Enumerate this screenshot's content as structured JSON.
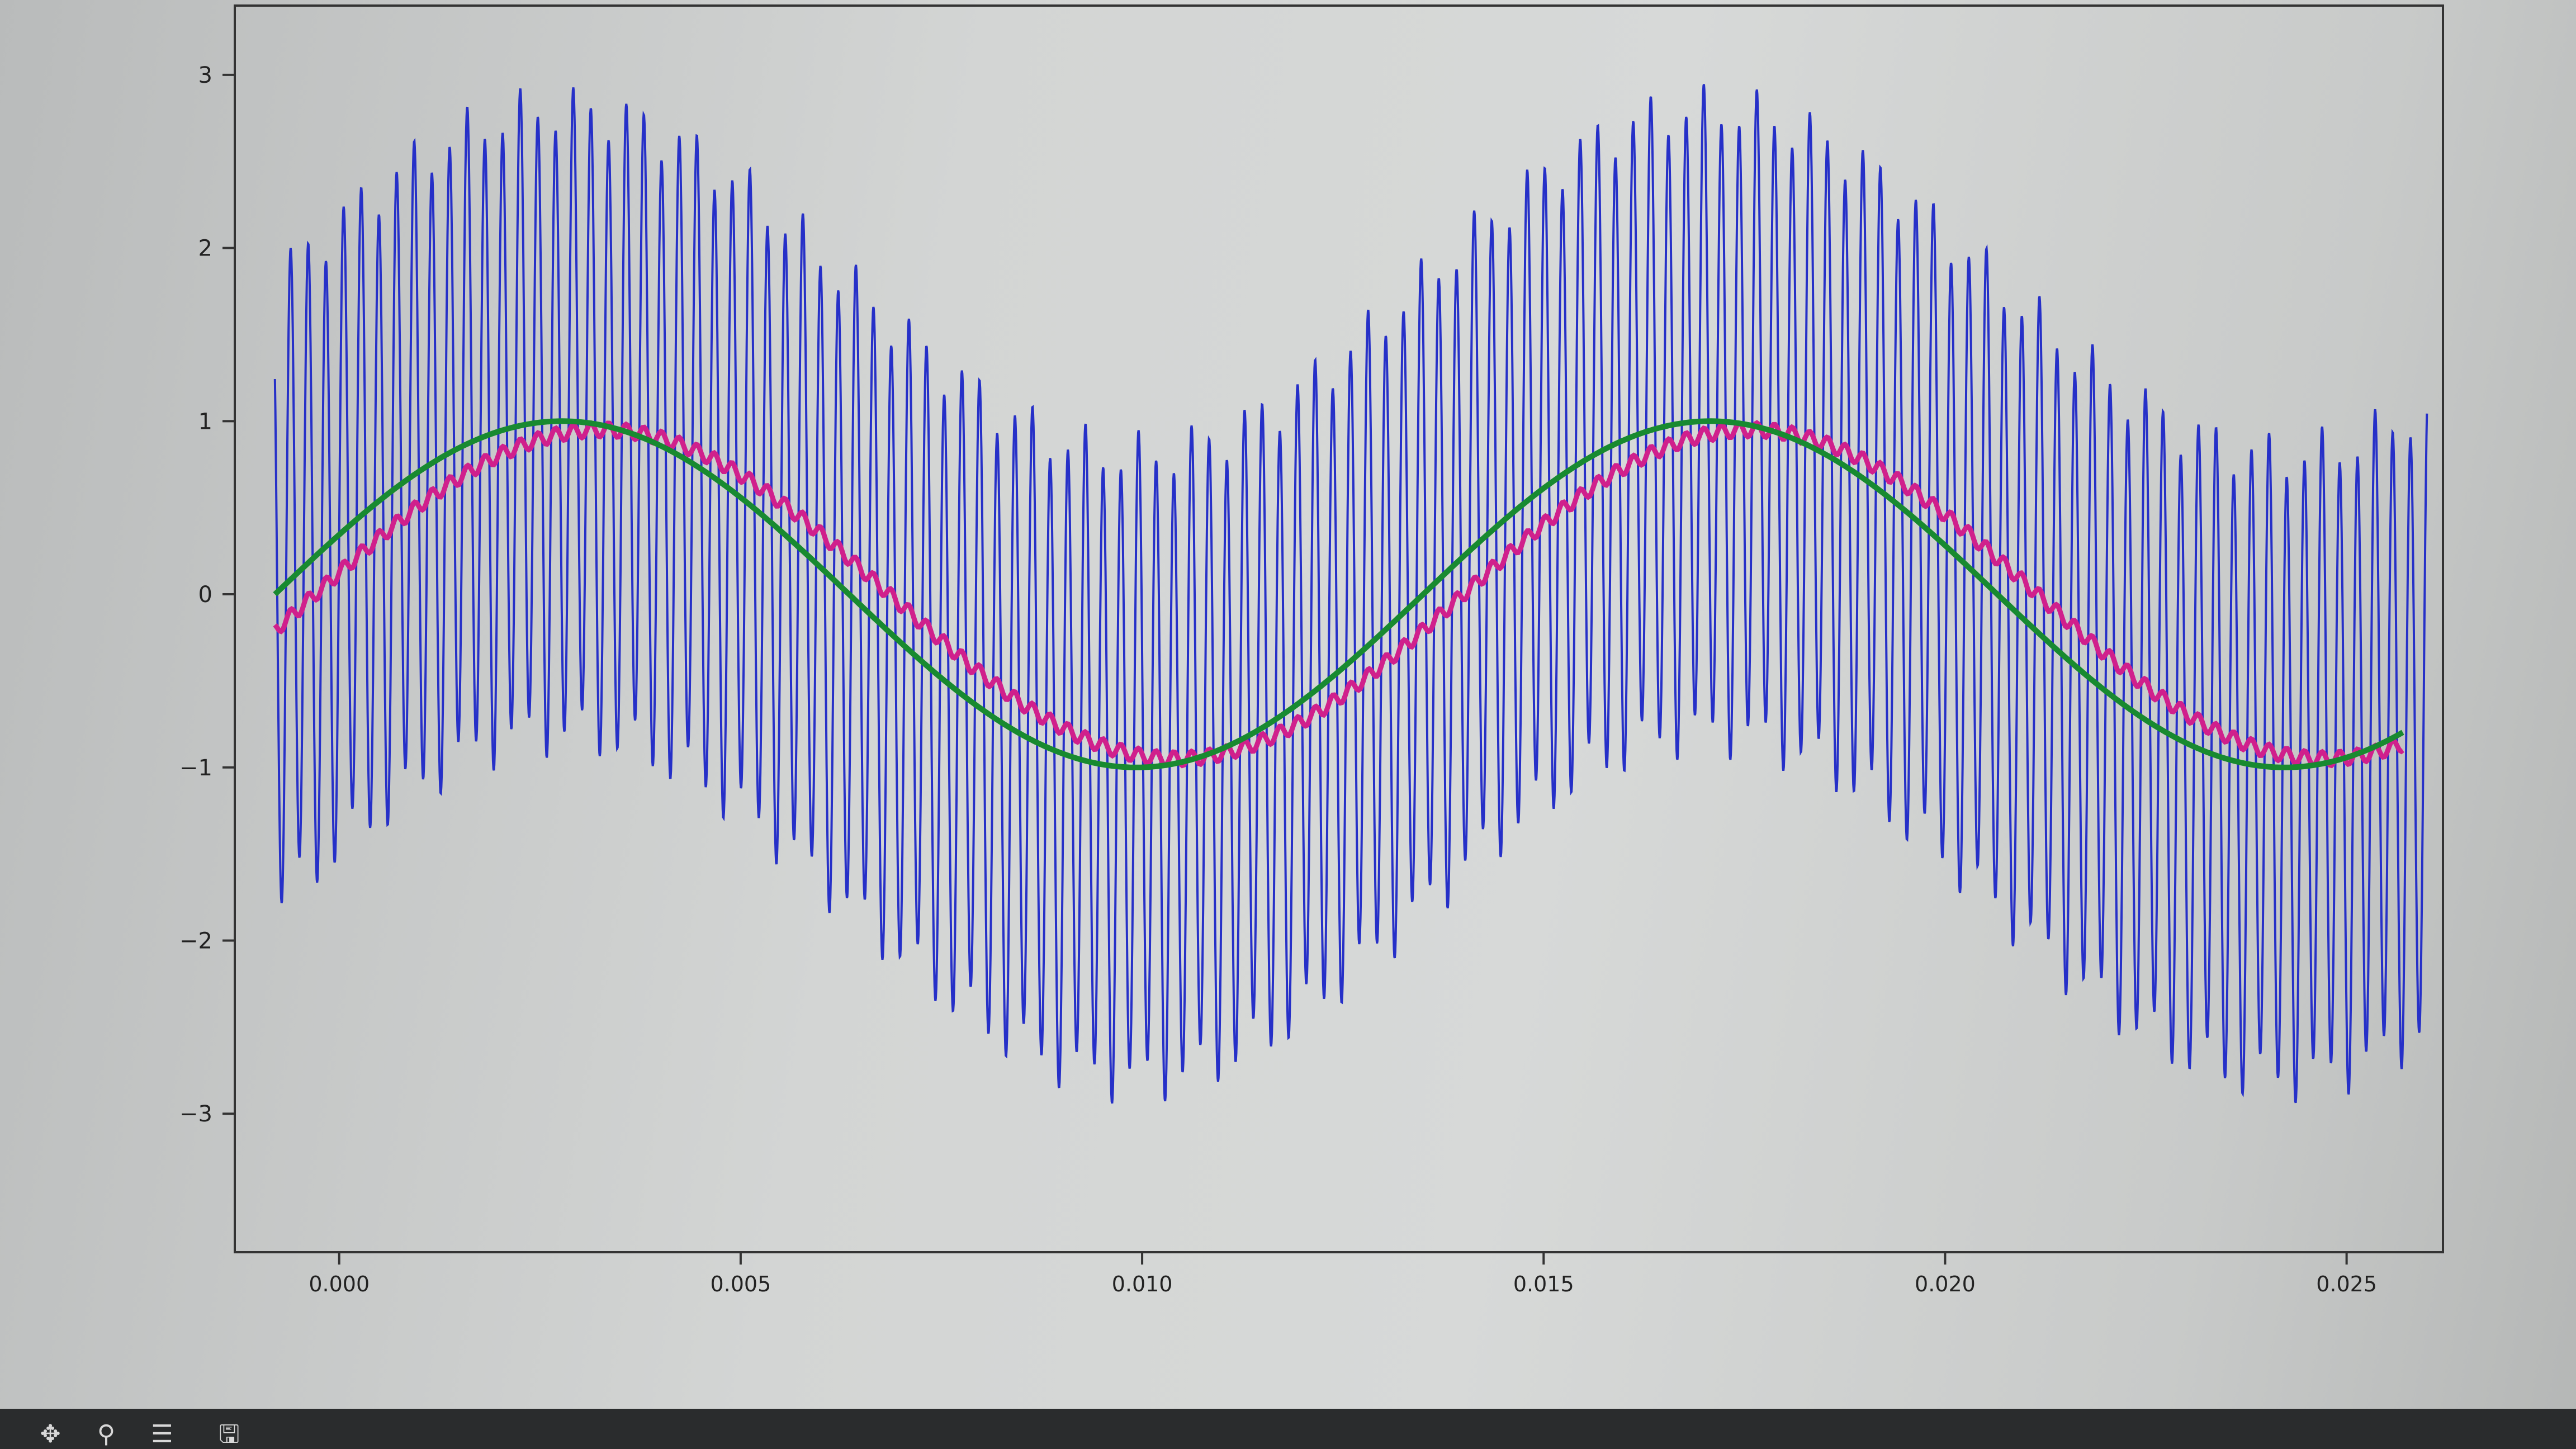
{
  "chart_data": {
    "type": "line",
    "title": "",
    "xlabel": "",
    "ylabel": "",
    "xlim": [
      -0.0013,
      0.0262
    ],
    "ylim": [
      -3.8,
      3.4
    ],
    "xticks": [
      "0.000",
      "0.005",
      "0.010",
      "0.015",
      "0.020",
      "0.025"
    ],
    "yticks": [
      "3",
      "2",
      "1",
      "0",
      "−1",
      "−2",
      "−3"
    ],
    "grid": false,
    "legend": "none",
    "series": [
      {
        "color": "#2630c8",
        "description_values": "noisy signal: low-frequency sine plus high-frequency component of amplitude ~1.8",
        "x_start": -0.0008,
        "x_end": 0.026,
        "low_freq_amplitude": 1.0,
        "low_freq_period": 0.0143,
        "high_freq_amplitude": 1.8,
        "high_freq_period": 0.00022
      },
      {
        "color": "#d0208c",
        "x_start": -0.0008,
        "x_end": 0.0257,
        "amplitude": 0.95,
        "period": 0.0143,
        "phase_shift": 0.0005,
        "ripple_amplitude": 0.04
      },
      {
        "color": "#188a30",
        "x_start": -0.0008,
        "x_end": 0.0257,
        "amplitude": 1.0,
        "period": 0.0143
      }
    ]
  },
  "toolbar": {
    "icons": [
      "pan-icon",
      "zoom-icon",
      "configure-icon",
      "save-icon"
    ]
  }
}
